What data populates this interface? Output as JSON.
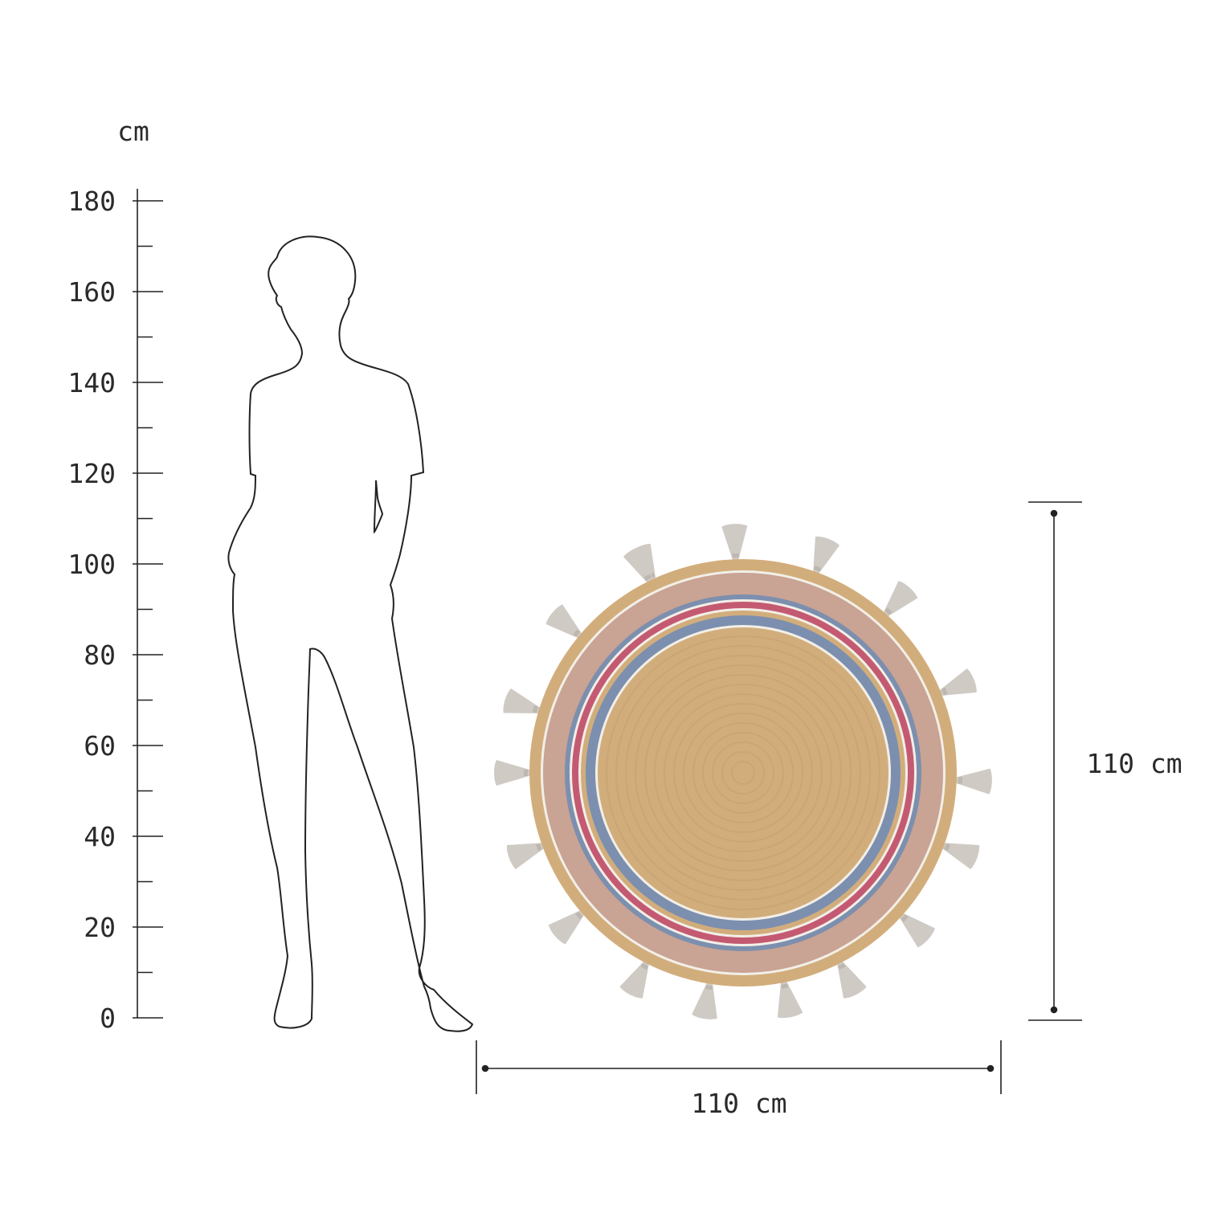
{
  "scale": {
    "unit_label": "cm",
    "ticks": [
      0,
      20,
      40,
      60,
      80,
      100,
      120,
      140,
      160,
      180
    ],
    "min": 0,
    "max": 180,
    "minor_step": 10
  },
  "product": {
    "width_label": "110 cm",
    "height_label": "110 cm",
    "colors": {
      "jute": "#d2ad7c",
      "pink_beige": "#c9a393",
      "blue": "#7c8fae",
      "pink": "#c45a72",
      "white": "#f2efe8",
      "tassel": "#cfcac4"
    }
  }
}
